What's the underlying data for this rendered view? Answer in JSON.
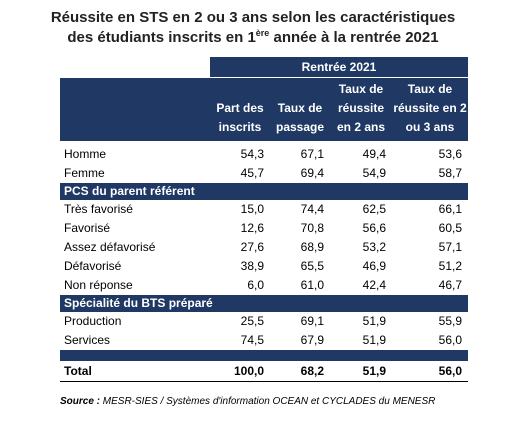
{
  "title": {
    "line1": "Réussite en STS en 2 ou 3 ans selon les caractéristiques",
    "line2_start": "des étudiants inscrits en 1",
    "line2_sup": "ère",
    "line2_end": " année à la rentrée 2021"
  },
  "table": {
    "group_header": "Rentrée 2021",
    "columns": [
      "Part des inscrits",
      "Taux de passage",
      "Taux de réussite en 2 ans",
      "Taux de réussite en 2 ou 3 ans"
    ],
    "groups": [
      {
        "rows": [
          {
            "label": "Homme",
            "values": [
              "54,3",
              "67,1",
              "49,4",
              "53,6"
            ]
          },
          {
            "label": "Femme",
            "values": [
              "45,7",
              "69,4",
              "54,9",
              "58,7"
            ]
          }
        ]
      },
      {
        "title": "PCS du parent référent",
        "rows": [
          {
            "label": "Très favorisé",
            "values": [
              "15,0",
              "74,4",
              "62,5",
              "66,1"
            ]
          },
          {
            "label": "Favorisé",
            "values": [
              "12,6",
              "70,8",
              "56,6",
              "60,5"
            ]
          },
          {
            "label": "Assez défavorisé",
            "values": [
              "27,6",
              "68,9",
              "53,2",
              "57,1"
            ]
          },
          {
            "label": "Défavorisé",
            "values": [
              "38,9",
              "65,5",
              "46,9",
              "51,2"
            ]
          },
          {
            "label": "Non réponse",
            "values": [
              "6,0",
              "61,0",
              "42,4",
              "46,7"
            ]
          }
        ]
      },
      {
        "title": "Spécialité du BTS préparé",
        "rows": [
          {
            "label": "Production",
            "values": [
              "25,5",
              "69,1",
              "51,9",
              "55,9"
            ]
          },
          {
            "label": "Services",
            "values": [
              "74,5",
              "67,9",
              "51,9",
              "56,0"
            ]
          }
        ]
      }
    ],
    "total": {
      "label": "Total",
      "values": [
        "100,0",
        "68,2",
        "51,9",
        "56,0"
      ]
    }
  },
  "source": {
    "label": "Source :",
    "text": " MESR-SIES / Systèmes d'information OCEAN et CYCLADES du MENESR"
  }
}
